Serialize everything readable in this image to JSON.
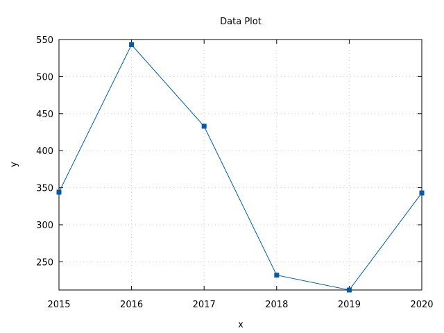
{
  "chart_data": {
    "type": "line",
    "title": "Data Plot",
    "xlabel": "x",
    "ylabel": "y",
    "x": [
      2015,
      2016,
      2017,
      2018,
      2019,
      2020
    ],
    "series": [
      {
        "values": [
          344,
          543,
          433,
          232,
          212,
          343
        ]
      }
    ],
    "xlim": [
      2015,
      2020
    ],
    "ylim": [
      212,
      550
    ],
    "xticks": [
      "2015",
      "2016",
      "2017",
      "2018",
      "2019",
      "2020"
    ],
    "yticks": [
      "250",
      "300",
      "350",
      "400",
      "450",
      "500",
      "550"
    ],
    "grid": true,
    "marker": "square",
    "color": "#005aa5"
  }
}
